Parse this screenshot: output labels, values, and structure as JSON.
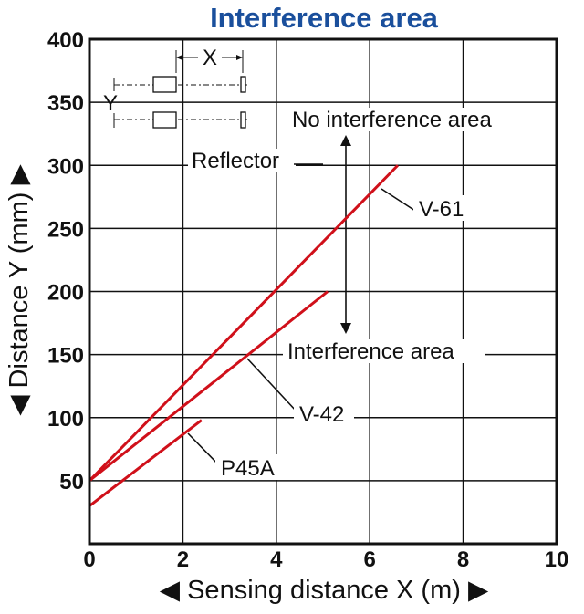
{
  "chart_data": {
    "type": "line",
    "title": "Interference area",
    "xlabel": "◀ Sensing distance X (m) ▶",
    "ylabel": "◀ Distance Y (mm) ▶",
    "xlim": [
      0,
      10
    ],
    "ylim": [
      0,
      400
    ],
    "xticks": [
      "0",
      "2",
      "4",
      "6",
      "8",
      "10"
    ],
    "yticks": [
      "50",
      "100",
      "150",
      "200",
      "250",
      "300",
      "350",
      "400"
    ],
    "grid": true,
    "series": [
      {
        "name": "V-61",
        "x": [
          0,
          6.6
        ],
        "y": [
          50,
          300
        ]
      },
      {
        "name": "V-42",
        "x": [
          0,
          5.1
        ],
        "y": [
          50,
          200
        ]
      },
      {
        "name": "P45A",
        "x": [
          0,
          2.4
        ],
        "y": [
          30,
          98
        ]
      }
    ],
    "annotations": {
      "no_interference": "No interference area",
      "interference": "Interference area",
      "reflector": "Reflector",
      "inset_x": "X",
      "inset_y": "Y"
    },
    "line_color": "#d0101a",
    "title_color": "#1a4f9c"
  }
}
